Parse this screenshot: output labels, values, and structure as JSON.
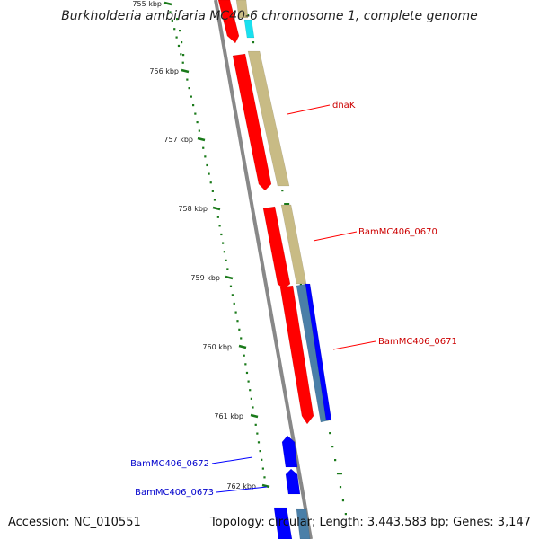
{
  "title": "Burkholderia ambifaria MC40-6 chromosome 1, complete genome",
  "footer": {
    "accession": "Accession: NC_010551",
    "summary": "Topology: circular; Length: 3,443,583 bp; Genes: 3,147"
  },
  "colors": {
    "forward_cds": "#ff0000",
    "reverse_cds": "#0000ff",
    "feature_tan": "#c8bb85",
    "feature_steelblue": "#4a7fa8",
    "feature_cyan": "#19e0ef",
    "backbone": "#888888",
    "ticks": "#1a7a1a"
  },
  "ticks": [
    {
      "label": "755 kbp"
    },
    {
      "label": "756 kbp"
    },
    {
      "label": "757 kbp"
    },
    {
      "label": "758 kbp"
    },
    {
      "label": "759 kbp"
    },
    {
      "label": "760 kbp"
    },
    {
      "label": "761 kbp"
    },
    {
      "label": "762 kbp"
    }
  ],
  "genes": [
    {
      "name": "dnaK",
      "strand": "forward"
    },
    {
      "name": "BamMC406_0670",
      "strand": "forward"
    },
    {
      "name": "BamMC406_0671",
      "strand": "forward"
    },
    {
      "name": "BamMC406_0672",
      "strand": "reverse"
    },
    {
      "name": "BamMC406_0673",
      "strand": "reverse"
    }
  ]
}
